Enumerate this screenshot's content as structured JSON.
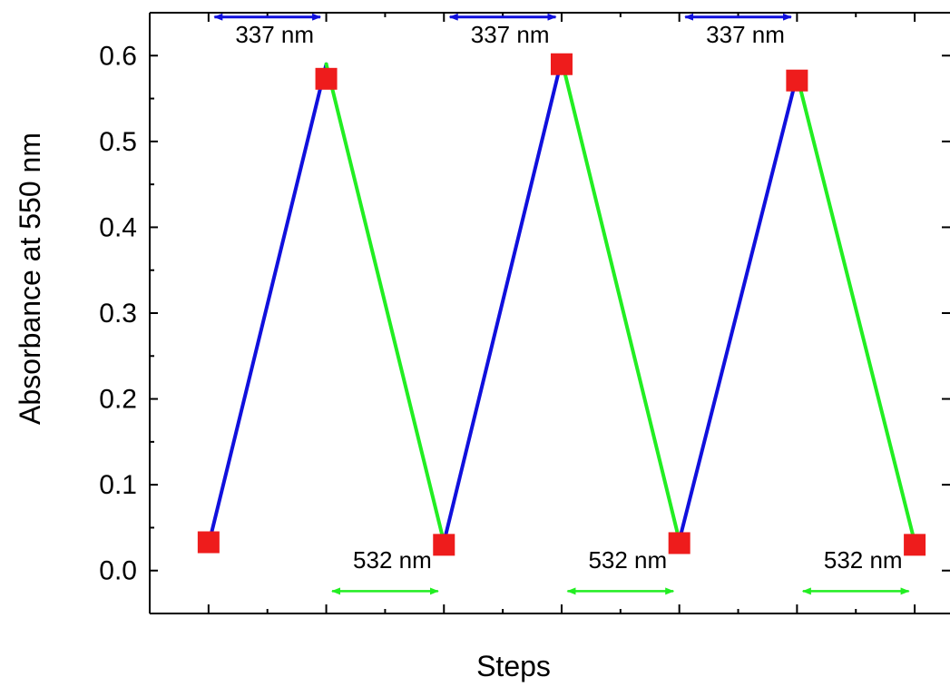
{
  "chart_data": {
    "type": "line",
    "title": "",
    "xlabel": "Steps",
    "ylabel": "Absorbance at 550 nm",
    "ylim": [
      -0.05,
      0.65
    ],
    "yticks": [
      0.0,
      0.1,
      0.2,
      0.3,
      0.4,
      0.5,
      0.6
    ],
    "ytick_labels": [
      "0.0",
      "0.1",
      "0.2",
      "0.3",
      "0.4",
      "0.5",
      "0.6"
    ],
    "x": [
      0,
      1,
      2,
      3,
      4,
      5,
      6
    ],
    "xtick_labels": [
      "",
      "",
      "",
      "",
      "",
      "",
      ""
    ],
    "xlim": [
      -0.5,
      6.3
    ],
    "grid": false,
    "legend": "none",
    "markers": {
      "shape": "square",
      "color": "#ee1c1c",
      "values": [
        0.033,
        0.573,
        0.03,
        0.59,
        0.032,
        0.571,
        0.03
      ]
    },
    "line": {
      "values": [
        0.03,
        0.59,
        0.033,
        0.595,
        0.035,
        0.577,
        0.033
      ],
      "segment_colors": [
        "#1010dd",
        "#22ee22",
        "#1010dd",
        "#22ee22",
        "#1010dd",
        "#22ee22"
      ]
    },
    "annotations": [
      {
        "text": "337 nm",
        "color": "#1010dd",
        "arrow_from_x": 0.05,
        "arrow_to_x": 0.95,
        "position": "top"
      },
      {
        "text": "337 nm",
        "color": "#1010dd",
        "arrow_from_x": 2.05,
        "arrow_to_x": 2.95,
        "position": "top"
      },
      {
        "text": "337 nm",
        "color": "#1010dd",
        "arrow_from_x": 4.05,
        "arrow_to_x": 4.95,
        "position": "top"
      },
      {
        "text": "532 nm",
        "color": "#22ee22",
        "arrow_from_x": 1.05,
        "arrow_to_x": 1.95,
        "position": "bottom"
      },
      {
        "text": "532 nm",
        "color": "#22ee22",
        "arrow_from_x": 3.05,
        "arrow_to_x": 3.95,
        "position": "bottom"
      },
      {
        "text": "532 nm",
        "color": "#22ee22",
        "arrow_from_x": 5.05,
        "arrow_to_x": 5.95,
        "position": "bottom"
      }
    ]
  }
}
